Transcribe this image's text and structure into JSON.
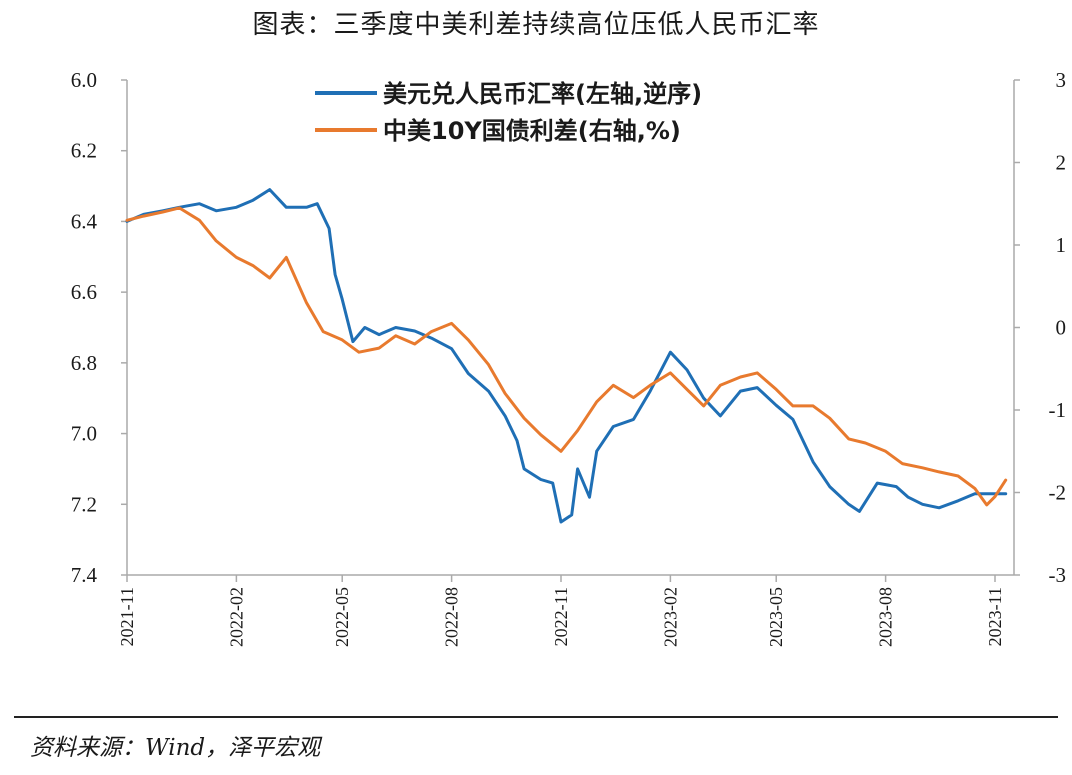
{
  "title": "图表：三季度中美利差持续高位压低人民币汇率",
  "source": "资料来源：Wind，泽平宏观",
  "chart_data": {
    "type": "line",
    "title": "图表：三季度中美利差持续高位压低人民币汇率",
    "x_ticks": [
      "2021-11",
      "2022-02",
      "2022-05",
      "2022-08",
      "2022-11",
      "2023-02",
      "2023-05",
      "2023-08",
      "2023-11"
    ],
    "left_axis": {
      "ticks": [
        "6.0",
        "6.2",
        "6.4",
        "6.6",
        "6.8",
        "7.0",
        "7.2",
        "7.4"
      ],
      "range": [
        6.0,
        7.4
      ],
      "inverted": true
    },
    "right_axis": {
      "ticks": [
        "3",
        "2",
        "1",
        "0",
        "-1",
        "-2",
        "-3"
      ],
      "range": [
        -3,
        3
      ]
    },
    "legend_position": "top-center",
    "series": [
      {
        "name": "美元兑人民币汇率(左轴,逆序)",
        "axis": "left",
        "color": "#1f6fb5",
        "x": [
          "2021-11-01",
          "2021-11-15",
          "2021-12-01",
          "2021-12-15",
          "2022-01-01",
          "2022-01-15",
          "2022-02-01",
          "2022-02-15",
          "2022-03-01",
          "2022-03-15",
          "2022-04-01",
          "2022-04-10",
          "2022-04-20",
          "2022-04-25",
          "2022-05-01",
          "2022-05-10",
          "2022-05-20",
          "2022-06-01",
          "2022-06-15",
          "2022-07-01",
          "2022-07-15",
          "2022-08-01",
          "2022-08-15",
          "2022-09-01",
          "2022-09-15",
          "2022-09-25",
          "2022-10-01",
          "2022-10-15",
          "2022-10-25",
          "2022-11-01",
          "2022-11-10",
          "2022-11-15",
          "2022-11-25",
          "2022-12-01",
          "2022-12-15",
          "2023-01-01",
          "2023-01-15",
          "2023-02-01",
          "2023-02-15",
          "2023-03-01",
          "2023-03-15",
          "2023-04-01",
          "2023-04-15",
          "2023-05-01",
          "2023-05-15",
          "2023-06-01",
          "2023-06-15",
          "2023-07-01",
          "2023-07-10",
          "2023-07-25",
          "2023-08-10",
          "2023-08-20",
          "2023-09-01",
          "2023-09-15",
          "2023-10-01",
          "2023-10-15",
          "2023-11-01",
          "2023-11-10"
        ],
        "values": [
          6.4,
          6.38,
          6.37,
          6.36,
          6.35,
          6.37,
          6.36,
          6.34,
          6.31,
          6.36,
          6.36,
          6.35,
          6.42,
          6.55,
          6.62,
          6.74,
          6.7,
          6.72,
          6.7,
          6.71,
          6.73,
          6.76,
          6.83,
          6.88,
          6.95,
          7.02,
          7.1,
          7.13,
          7.14,
          7.25,
          7.23,
          7.1,
          7.18,
          7.05,
          6.98,
          6.96,
          6.88,
          6.77,
          6.82,
          6.9,
          6.95,
          6.88,
          6.87,
          6.92,
          6.96,
          7.08,
          7.15,
          7.2,
          7.22,
          7.14,
          7.15,
          7.18,
          7.2,
          7.21,
          7.19,
          7.17,
          7.17,
          7.17
        ]
      },
      {
        "name": "中美10Y国债利差(右轴,%)",
        "axis": "right",
        "color": "#e87a2e",
        "x": [
          "2021-11-01",
          "2021-11-15",
          "2021-12-01",
          "2021-12-15",
          "2022-01-01",
          "2022-01-15",
          "2022-02-01",
          "2022-02-15",
          "2022-03-01",
          "2022-03-15",
          "2022-04-01",
          "2022-04-15",
          "2022-05-01",
          "2022-05-15",
          "2022-06-01",
          "2022-06-15",
          "2022-07-01",
          "2022-07-15",
          "2022-08-01",
          "2022-08-15",
          "2022-09-01",
          "2022-09-15",
          "2022-10-01",
          "2022-10-15",
          "2022-11-01",
          "2022-11-15",
          "2022-12-01",
          "2022-12-15",
          "2023-01-01",
          "2023-01-15",
          "2023-02-01",
          "2023-02-15",
          "2023-03-01",
          "2023-03-15",
          "2023-04-01",
          "2023-04-15",
          "2023-05-01",
          "2023-05-15",
          "2023-06-01",
          "2023-06-15",
          "2023-07-01",
          "2023-07-15",
          "2023-08-01",
          "2023-08-15",
          "2023-09-01",
          "2023-09-15",
          "2023-10-01",
          "2023-10-15",
          "2023-10-25",
          "2023-11-01",
          "2023-11-10"
        ],
        "values": [
          1.3,
          1.35,
          1.4,
          1.45,
          1.3,
          1.05,
          0.85,
          0.75,
          0.6,
          0.85,
          0.3,
          -0.05,
          -0.15,
          -0.3,
          -0.25,
          -0.1,
          -0.2,
          -0.05,
          0.05,
          -0.15,
          -0.45,
          -0.8,
          -1.1,
          -1.3,
          -1.5,
          -1.25,
          -0.9,
          -0.7,
          -0.85,
          -0.7,
          -0.55,
          -0.75,
          -0.95,
          -0.7,
          -0.6,
          -0.55,
          -0.75,
          -0.95,
          -0.95,
          -1.1,
          -1.35,
          -1.4,
          -1.5,
          -1.65,
          -1.7,
          -1.75,
          -1.8,
          -1.95,
          -2.15,
          -2.05,
          -1.85
        ]
      }
    ]
  }
}
